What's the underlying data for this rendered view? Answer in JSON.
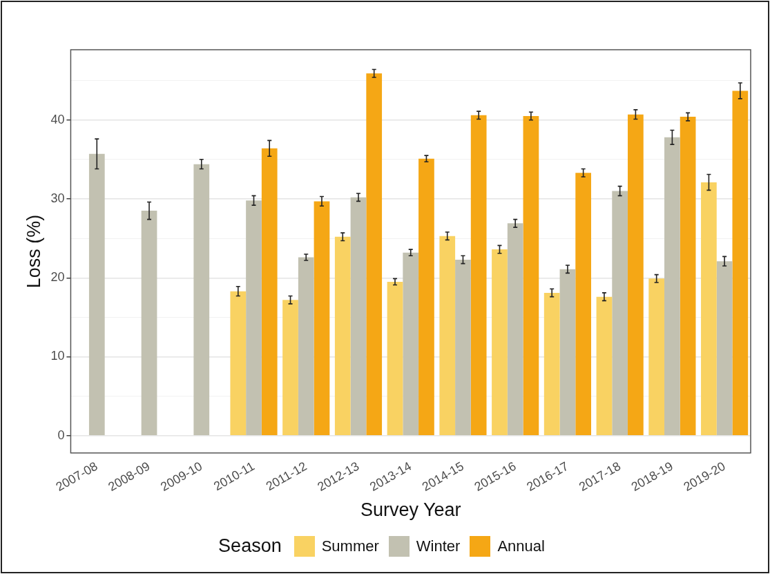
{
  "chart_data": {
    "type": "bar",
    "xlabel": "Survey Year",
    "ylabel": "Loss (%)",
    "legend_title": "Season",
    "legend": "bottom",
    "grid": "y",
    "categories": [
      "2007-08",
      "2008-09",
      "2009-10",
      "2010-11",
      "2011-12",
      "2012-13",
      "2013-14",
      "2014-15",
      "2015-16",
      "2016-17",
      "2017-18",
      "2018-19",
      "2019-20"
    ],
    "ylim": [
      -2.2,
      48.9
    ],
    "yticks": [
      0,
      {
        "value": 5,
        "label": null
      },
      10,
      {
        "value": 15,
        "label": null
      },
      20,
      {
        "value": 25,
        "label": null
      },
      30,
      {
        "value": 35,
        "label": null
      },
      40,
      {
        "value": 45,
        "label": null
      }
    ],
    "series": [
      {
        "name": "Summer",
        "color": "#f9d262",
        "values": [
          null,
          null,
          null,
          18.3,
          17.2,
          25.2,
          19.5,
          25.3,
          23.6,
          18.1,
          17.6,
          19.9,
          32.1
        ],
        "errors": [
          null,
          null,
          null,
          0.6,
          0.5,
          0.5,
          0.4,
          0.5,
          0.5,
          0.5,
          0.5,
          0.5,
          1.0
        ]
      },
      {
        "name": "Winter",
        "color": "#c2c1b1",
        "values": [
          35.7,
          28.5,
          34.4,
          29.8,
          22.6,
          30.2,
          23.2,
          22.3,
          26.9,
          21.1,
          31.0,
          37.8,
          22.1
        ],
        "errors": [
          1.9,
          1.1,
          0.6,
          0.6,
          0.4,
          0.5,
          0.4,
          0.5,
          0.5,
          0.5,
          0.6,
          0.9,
          0.6
        ]
      },
      {
        "name": "Annual",
        "color": "#f5a715",
        "values": [
          null,
          null,
          null,
          36.4,
          29.7,
          45.9,
          35.1,
          40.6,
          40.5,
          33.3,
          40.7,
          40.4,
          43.7
        ],
        "errors": [
          null,
          null,
          null,
          1.0,
          0.6,
          0.5,
          0.4,
          0.5,
          0.5,
          0.5,
          0.6,
          0.5,
          1.0
        ]
      }
    ]
  }
}
